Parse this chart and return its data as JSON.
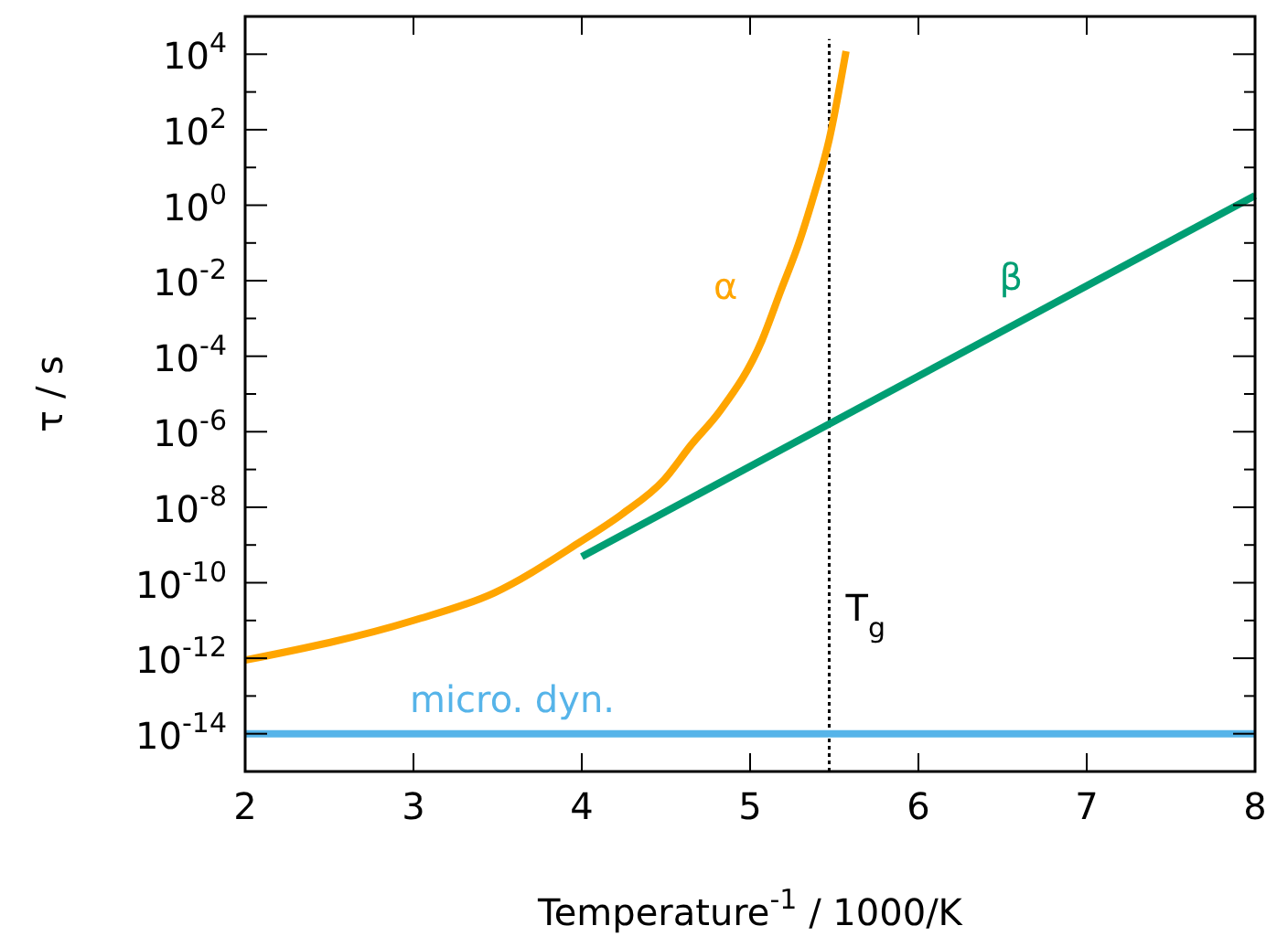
{
  "chart_data": {
    "type": "line",
    "xlabel": "Temperature$^{-1}$ / 1000/K",
    "ylabel": "τ / s",
    "log": "y",
    "marker": "none",
    "line_style": "solid",
    "xlim": [
      2,
      8
    ],
    "xticks": [
      2,
      3,
      4,
      5,
      6,
      7,
      8
    ],
    "ylim": [
      1e-15,
      100000.0
    ],
    "yticks": [
      {
        "value": 1e-14,
        "label": "10$^{-14}$"
      },
      {
        "value": 1e-13,
        "label": null
      },
      {
        "value": 1e-12,
        "label": "10$^{-12}$"
      },
      {
        "value": 1e-11,
        "label": null
      },
      {
        "value": 1e-10,
        "label": "10$^{-10}$"
      },
      {
        "value": 1e-09,
        "label": null
      },
      {
        "value": 1e-08,
        "label": "10$^{-8}$"
      },
      {
        "value": 1e-07,
        "label": null
      },
      {
        "value": 1e-06,
        "label": "10$^{-6}$"
      },
      {
        "value": 1e-05,
        "label": null
      },
      {
        "value": 0.0001,
        "label": "10$^{-4}$"
      },
      {
        "value": 0.001,
        "label": null
      },
      {
        "value": 0.01,
        "label": "10$^{-2}$"
      },
      {
        "value": 0.1,
        "label": null
      },
      {
        "value": 1,
        "label": "10$^{0}$"
      },
      {
        "value": 10,
        "label": null
      },
      {
        "value": 100,
        "label": "10$^{2}$"
      },
      {
        "value": 1000,
        "label": null
      },
      {
        "value": 10000,
        "label": "10$^{4}$"
      }
    ],
    "series": [
      {
        "name": "α",
        "color": "#ffa500",
        "x": [
          2,
          3,
          3.48,
          3.99,
          4.24,
          4.49,
          4.65,
          4.82,
          5.07,
          5.18,
          5.29,
          5.38,
          5.47,
          5.57
        ],
        "values": [
          8.9e-13,
          1e-11,
          5.4e-11,
          1.2e-09,
          6.6e-09,
          5.4e-08,
          4.5e-07,
          3.5e-06,
          0.00026,
          0.0051,
          0.1,
          1.9,
          55,
          12000
        ]
      },
      {
        "name": "β",
        "color": "#009e73",
        "x": [
          4,
          8
        ],
        "values": [
          4.9e-10,
          1.8
        ]
      },
      {
        "name": "micro. dyn.",
        "color": "#56b4e9",
        "x": [
          2,
          8
        ],
        "values": [
          1e-14,
          1e-14
        ]
      }
    ],
    "ref_lines": [
      {
        "axis": "x",
        "value": 5.47,
        "label": "T$_{g}$",
        "color": "#000000",
        "line_style": "dotted"
      }
    ]
  }
}
